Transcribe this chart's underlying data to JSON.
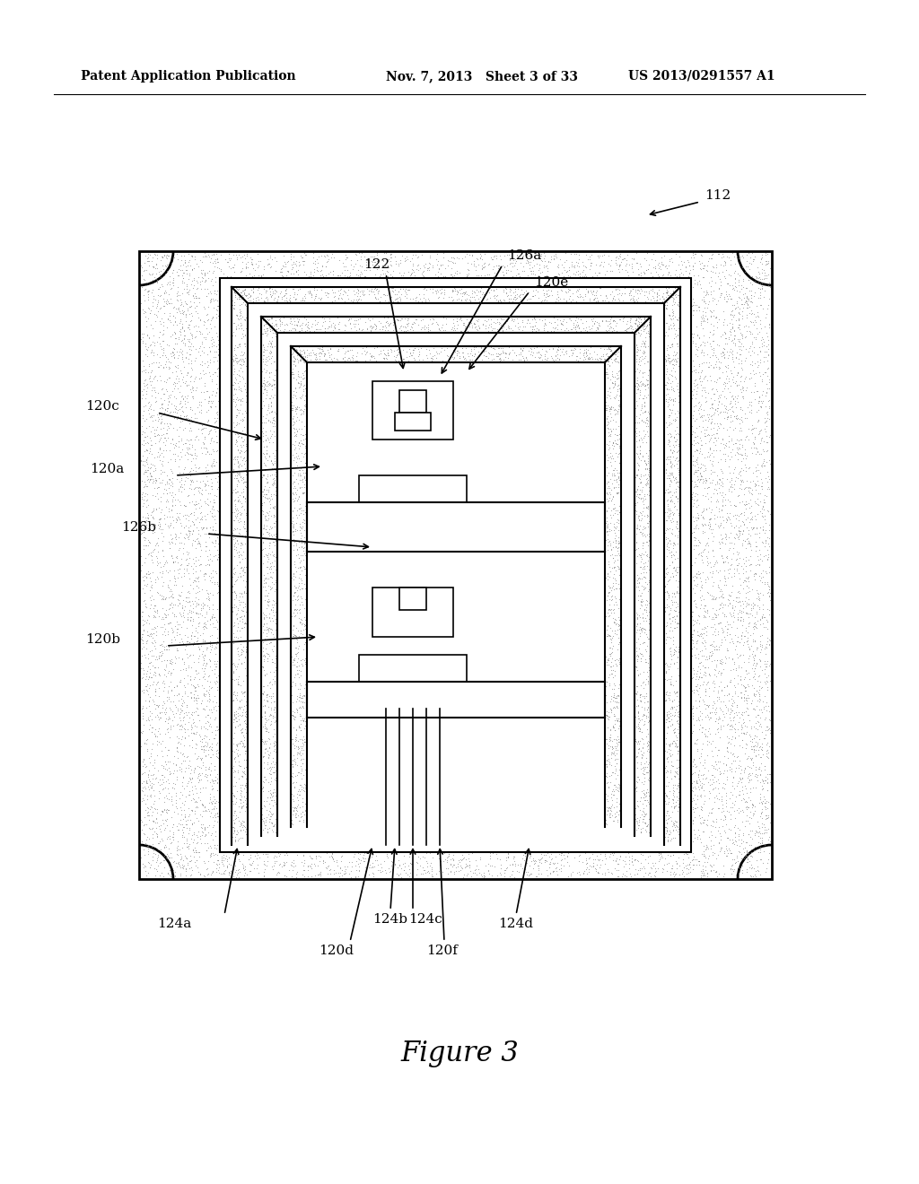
{
  "header_left": "Patent Application Publication",
  "header_mid": "Nov. 7, 2013   Sheet 3 of 33",
  "header_right": "US 2013/0291557 A1",
  "figure_label": "Figure 3",
  "bg_color": "#ffffff",
  "stipple_color": "#aaaaaa",
  "line_color": "#000000",
  "label_112": "112",
  "label_126a": "126a",
  "label_122": "122",
  "label_120e": "120e",
  "label_120c": "120c",
  "label_120a": "120a",
  "label_126b": "126b",
  "label_120b": "120b",
  "label_124a": "124a",
  "label_124b": "124b",
  "label_124c": "124c",
  "label_124d": "124d",
  "label_120d": "120d",
  "label_120f": "120f"
}
